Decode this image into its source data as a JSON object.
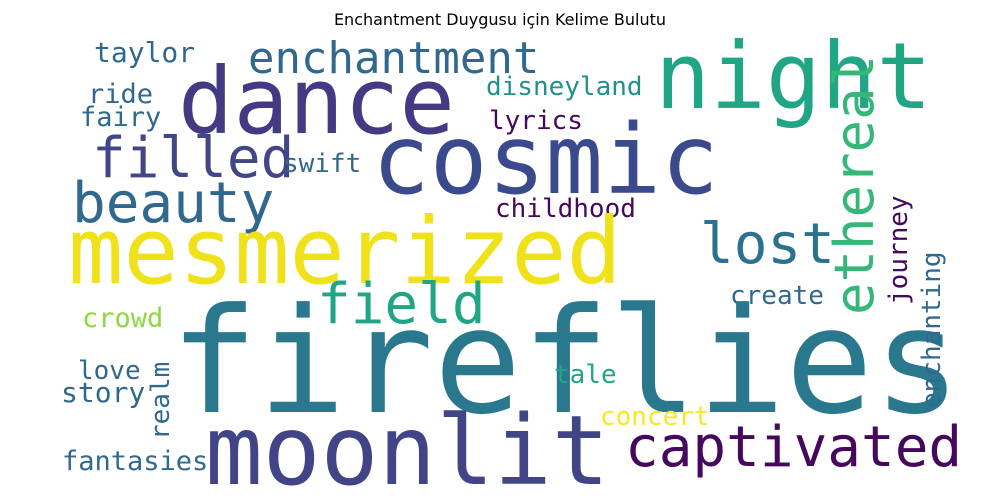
{
  "title": "Enchantment Duygusu için Kelime Bulutu",
  "palette": {
    "dark_purple": "#46085c",
    "indigo": "#443a83",
    "slate_blue": "#31688e",
    "teal": "#21918c",
    "green": "#35b779",
    "lime": "#8fd744",
    "yellow": "#f3e31a"
  },
  "words": [
    {
      "text": "dance"
    },
    {
      "text": "night"
    },
    {
      "text": "enchantment"
    },
    {
      "text": "taylor"
    },
    {
      "text": "disneyland"
    },
    {
      "text": "ride"
    },
    {
      "text": "fairy"
    },
    {
      "text": "lyrics"
    },
    {
      "text": "cosmic"
    },
    {
      "text": "filled"
    },
    {
      "text": "swift"
    },
    {
      "text": "beauty"
    },
    {
      "text": "ethereal"
    },
    {
      "text": "childhood"
    },
    {
      "text": "journey"
    },
    {
      "text": "mesmerized"
    },
    {
      "text": "lost"
    },
    {
      "text": "enchanting"
    },
    {
      "text": "field"
    },
    {
      "text": "create"
    },
    {
      "text": "crowd"
    },
    {
      "text": "fireflies"
    },
    {
      "text": "love"
    },
    {
      "text": "realm"
    },
    {
      "text": "story"
    },
    {
      "text": "tale"
    },
    {
      "text": "concert"
    },
    {
      "text": "moonlit"
    },
    {
      "text": "captivated"
    },
    {
      "text": "fantasies"
    }
  ]
}
